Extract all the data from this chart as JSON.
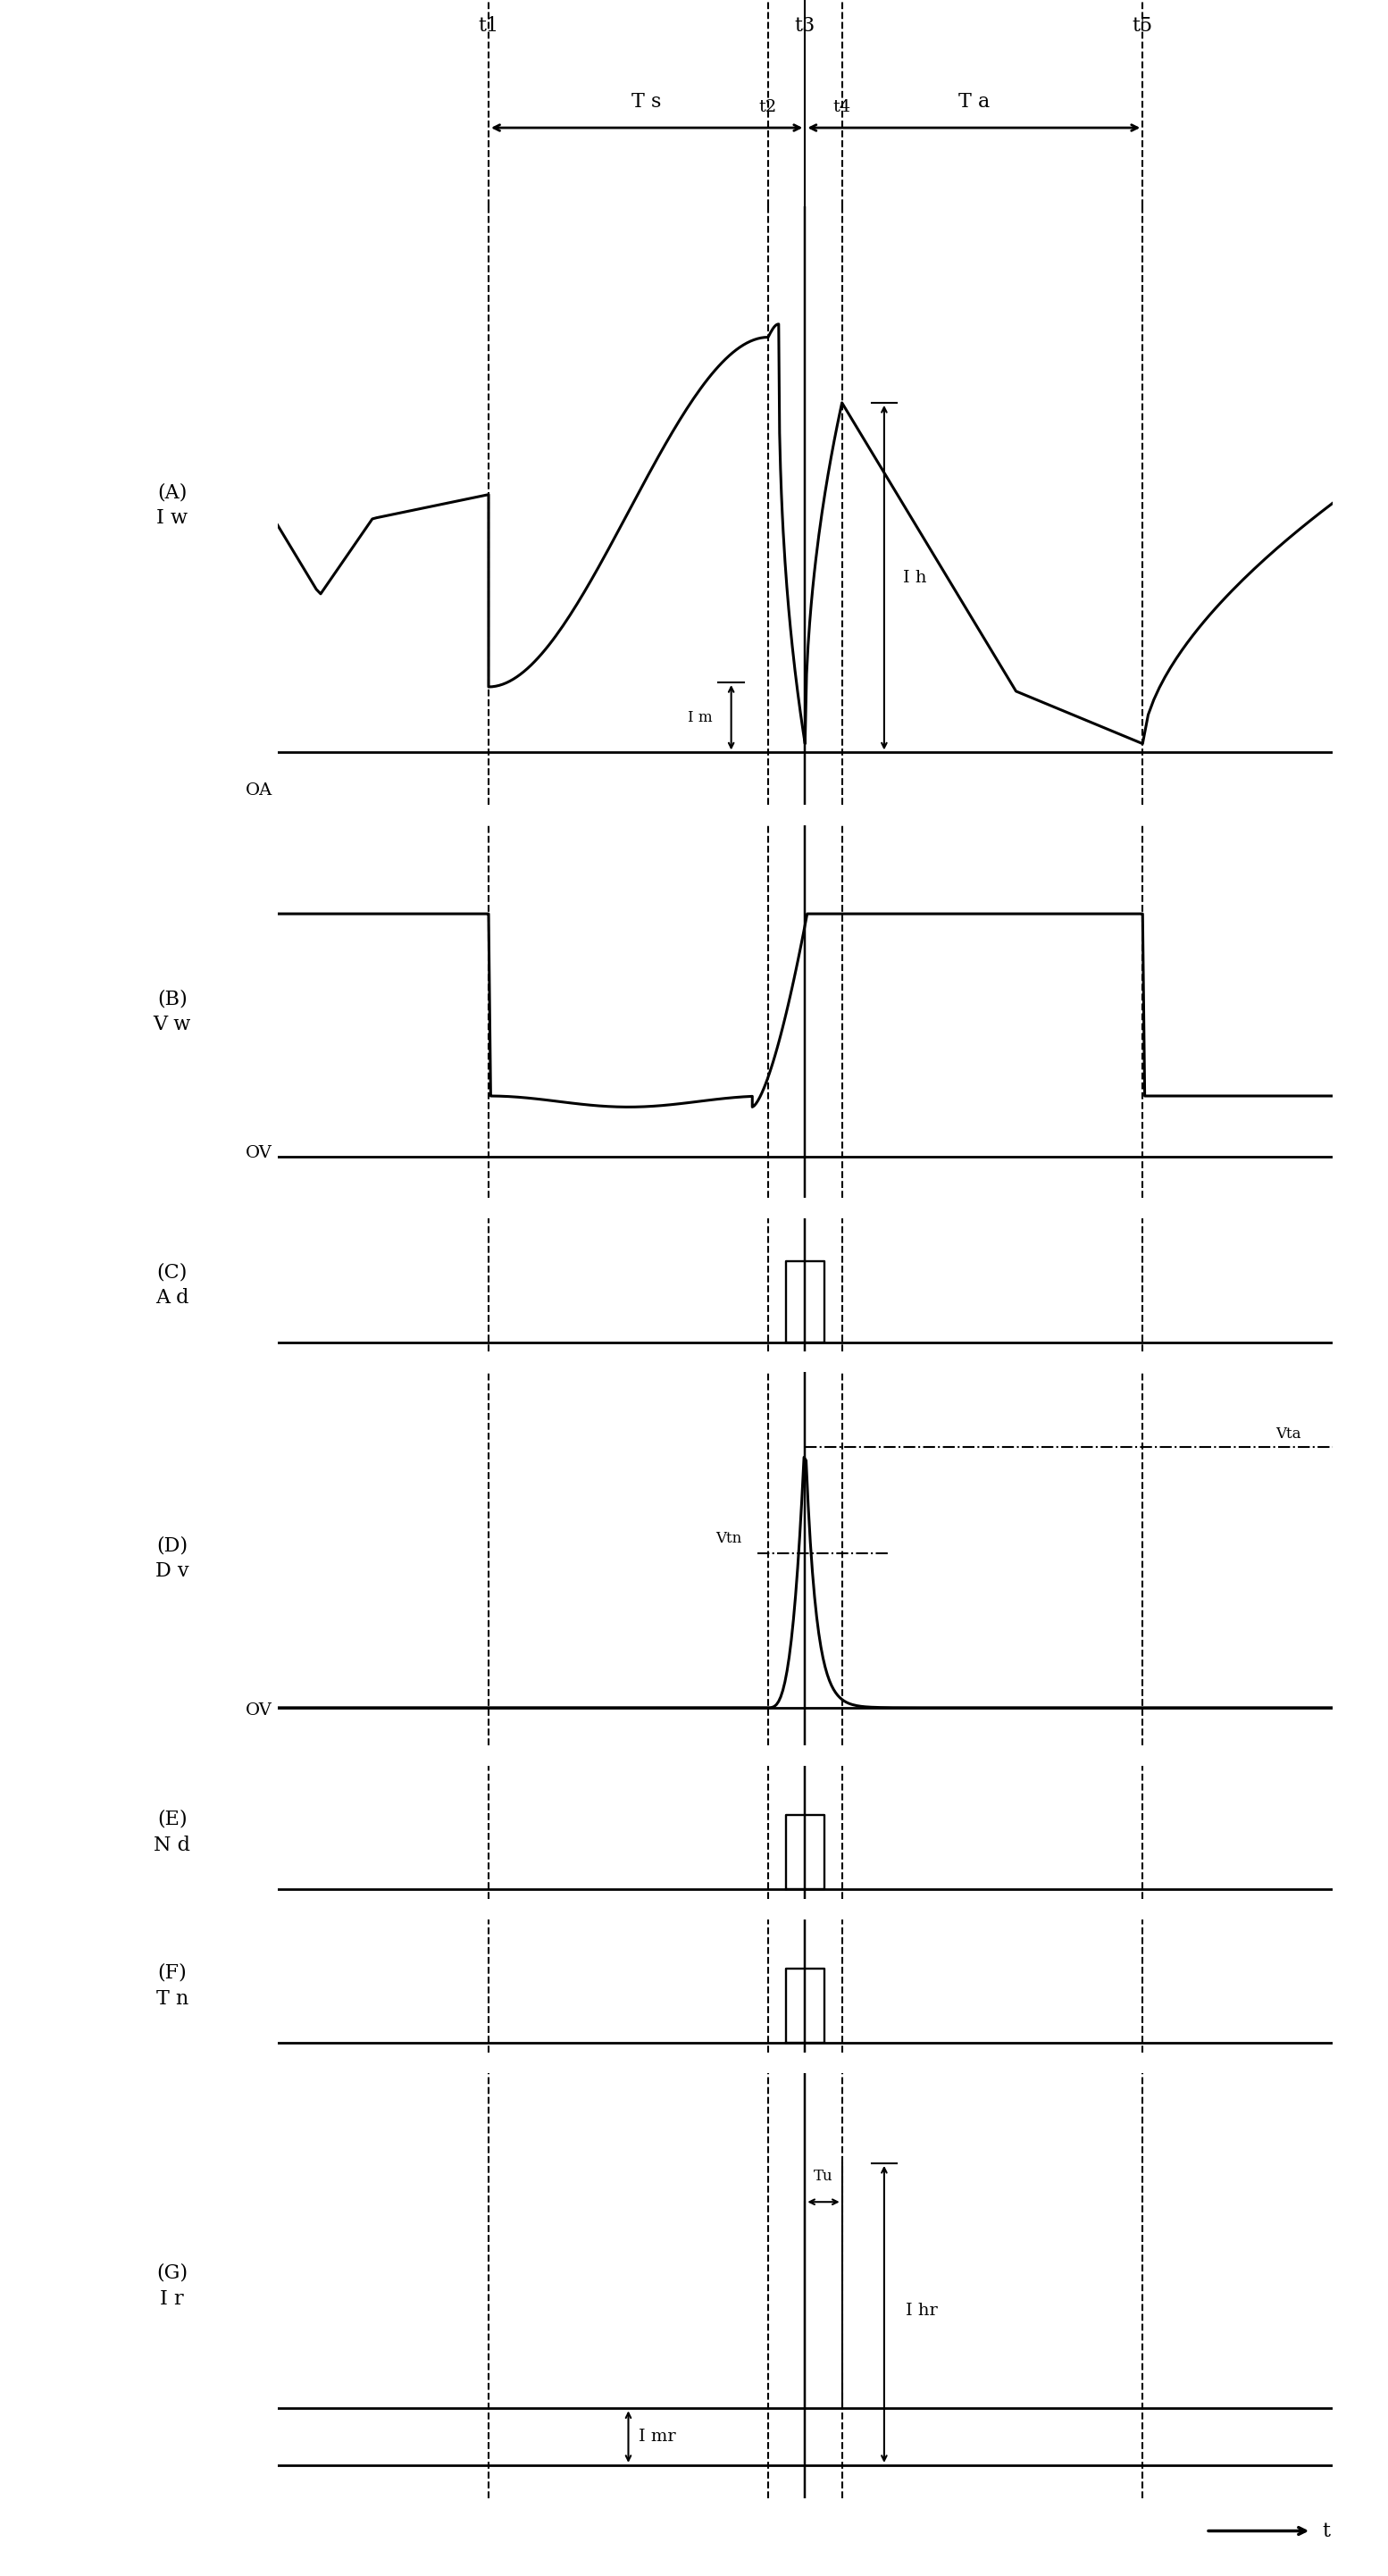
{
  "background_color": "#ffffff",
  "t1": 0.2,
  "t2": 0.465,
  "t3": 0.5,
  "t4": 0.535,
  "t5": 0.82,
  "xlim": [
    0.0,
    1.0
  ],
  "panel_labels": [
    "(A)\nI w",
    "(B)\nV w",
    "(C)\nA d",
    "(D)\nD v",
    "(E)\nN d",
    "(F)\nT n",
    "(G)\nI r"
  ],
  "lw_main": 2.2,
  "lw_vline": 1.5,
  "lw_baseline": 2.0,
  "fontsize_label": 16,
  "fontsize_tick": 14,
  "fontsize_annot": 14
}
